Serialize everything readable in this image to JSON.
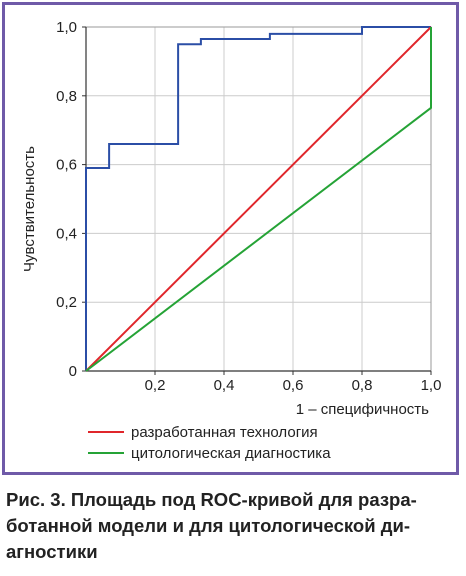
{
  "colors": {
    "frame": "#6f5aa8",
    "grid": "#cccccc",
    "axis": "#333333",
    "series_blue": "#2b4ea6",
    "series_red": "#e0262b",
    "series_green": "#25a336"
  },
  "caption": "Рис. 3. Площадь под ROC-кривой для разра-ботанной модели и для цитологической ди-агностики",
  "caption_lines": [
    "Рис. 3. Площадь под ROC-кривой для разра-",
    "ботанной модели и для цитологической ди-",
    "агностики"
  ],
  "chart_data": {
    "type": "line",
    "title": "",
    "xlabel": "1 – специфичность",
    "ylabel": "Чувствительность",
    "xlim": [
      0,
      1
    ],
    "ylim": [
      0,
      1
    ],
    "x_ticks": [
      "0,2",
      "0,4",
      "0,6",
      "0,8",
      "1,0"
    ],
    "y_ticks": [
      "0",
      "0,2",
      "0,4",
      "0,6",
      "0,8",
      "1,0"
    ],
    "grid": true,
    "legend_position": "bottom",
    "series": [
      {
        "name": "",
        "color": "#2b4ea6",
        "x": [
          0,
          0,
          0.067,
          0.067,
          0.267,
          0.267,
          0.333,
          0.333,
          0.533,
          0.533,
          0.8,
          0.8,
          1.0
        ],
        "y": [
          0,
          0.59,
          0.59,
          0.66,
          0.66,
          0.95,
          0.95,
          0.965,
          0.965,
          0.98,
          0.98,
          1.0,
          1.0
        ]
      },
      {
        "name": "разработанная технология",
        "color": "#e0262b",
        "x": [
          0,
          1.0
        ],
        "y": [
          0,
          1.0
        ]
      },
      {
        "name": "цитологическая диагностика",
        "color": "#25a336",
        "x": [
          0,
          1.0,
          1.0
        ],
        "y": [
          0,
          0.765,
          1.0
        ]
      }
    ]
  }
}
